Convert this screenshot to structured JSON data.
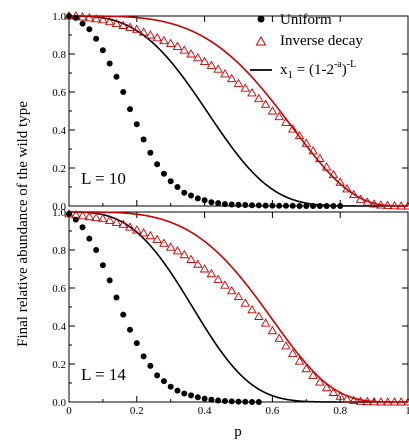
{
  "chart_data": {
    "type": "scatter",
    "xlabel": "p",
    "ylabel": "Final relative abundance of the wild type",
    "xlim": [
      0,
      1
    ],
    "ylim": [
      0,
      1
    ],
    "x_ticks": [
      "0",
      "0.2",
      "0.4",
      "0.6",
      "0.8",
      "1"
    ],
    "y_ticks": [
      "0.0",
      "0.2",
      "0.4",
      "0.6",
      "0.8",
      "1.0"
    ],
    "grid": false,
    "legend": {
      "placement": "top-right",
      "entries": [
        {
          "label": "Uniform",
          "marker": "filled-circle",
          "color": "#000000"
        },
        {
          "label": "Inverse decay",
          "marker": "open-triangle",
          "color": "#cc0000"
        },
        {
          "label": "x1 = (1-2^-a)^-L",
          "marker": "line",
          "color": "#000000"
        }
      ]
    },
    "panels": [
      {
        "label": "L = 10",
        "L": 10,
        "uniform_points": {
          "x": [
            0,
            0.02,
            0.04,
            0.06,
            0.08,
            0.1,
            0.12,
            0.14,
            0.16,
            0.18,
            0.2,
            0.22,
            0.24,
            0.26,
            0.28,
            0.3,
            0.32,
            0.34,
            0.36,
            0.38,
            0.4,
            0.42,
            0.44,
            0.46,
            0.48,
            0.5,
            0.52,
            0.54,
            0.56,
            0.58,
            0.6,
            0.62,
            0.64,
            0.66,
            0.68,
            0.7,
            0.72,
            0.74,
            0.76,
            0.78,
            0.8
          ],
          "y": [
            1.0,
            0.99,
            0.96,
            0.93,
            0.88,
            0.82,
            0.75,
            0.68,
            0.6,
            0.51,
            0.43,
            0.35,
            0.28,
            0.22,
            0.17,
            0.13,
            0.1,
            0.07,
            0.055,
            0.04,
            0.03,
            0.02,
            0.015,
            0.01,
            0.008,
            0.006,
            0.005,
            0.004,
            0.003,
            0.002,
            0.002,
            0.001,
            0.001,
            0.001,
            0.0,
            0.0,
            0.0,
            0.0,
            0.0,
            0.0,
            0.0
          ]
        },
        "inverse_points": {
          "x": [
            0,
            0.02,
            0.04,
            0.06,
            0.08,
            0.1,
            0.12,
            0.14,
            0.16,
            0.18,
            0.2,
            0.22,
            0.24,
            0.26,
            0.28,
            0.3,
            0.32,
            0.34,
            0.36,
            0.38,
            0.4,
            0.42,
            0.44,
            0.46,
            0.48,
            0.5,
            0.52,
            0.54,
            0.56,
            0.58,
            0.6,
            0.62,
            0.64,
            0.66,
            0.68,
            0.7,
            0.72,
            0.74,
            0.76,
            0.78,
            0.8,
            0.82,
            0.84,
            0.86,
            0.88,
            0.9,
            0.92,
            0.94,
            0.96,
            0.98,
            1.0
          ],
          "y": [
            1.0,
            1.0,
            0.995,
            0.99,
            0.985,
            0.98,
            0.97,
            0.96,
            0.95,
            0.94,
            0.93,
            0.915,
            0.9,
            0.885,
            0.87,
            0.855,
            0.84,
            0.82,
            0.8,
            0.78,
            0.76,
            0.74,
            0.72,
            0.695,
            0.67,
            0.645,
            0.62,
            0.595,
            0.565,
            0.535,
            0.5,
            0.47,
            0.44,
            0.405,
            0.37,
            0.33,
            0.29,
            0.25,
            0.205,
            0.165,
            0.125,
            0.09,
            0.06,
            0.035,
            0.02,
            0.01,
            0.005,
            0.003,
            0.001,
            0.0,
            0.0
          ]
        }
      },
      {
        "label": "L = 14",
        "L": 14,
        "uniform_points": {
          "x": [
            0,
            0.02,
            0.04,
            0.06,
            0.08,
            0.1,
            0.12,
            0.14,
            0.16,
            0.18,
            0.2,
            0.22,
            0.24,
            0.26,
            0.28,
            0.3,
            0.32,
            0.34,
            0.36,
            0.38,
            0.4,
            0.42,
            0.44,
            0.46,
            0.48,
            0.5,
            0.52,
            0.54,
            0.56
          ],
          "y": [
            0.99,
            0.96,
            0.92,
            0.86,
            0.8,
            0.72,
            0.64,
            0.55,
            0.46,
            0.38,
            0.31,
            0.24,
            0.19,
            0.14,
            0.11,
            0.08,
            0.06,
            0.045,
            0.035,
            0.025,
            0.018,
            0.012,
            0.008,
            0.005,
            0.003,
            0.002,
            0.001,
            0.0,
            0.0
          ]
        },
        "inverse_points": {
          "x": [
            0,
            0.02,
            0.04,
            0.06,
            0.08,
            0.1,
            0.12,
            0.14,
            0.16,
            0.18,
            0.2,
            0.22,
            0.24,
            0.26,
            0.28,
            0.3,
            0.32,
            0.34,
            0.36,
            0.38,
            0.4,
            0.42,
            0.44,
            0.46,
            0.48,
            0.5,
            0.52,
            0.54,
            0.56,
            0.58,
            0.6,
            0.62,
            0.64,
            0.66,
            0.68,
            0.7,
            0.72,
            0.74,
            0.76,
            0.78,
            0.8,
            0.82,
            0.84,
            0.86,
            0.88,
            0.9,
            0.92,
            0.94,
            0.96,
            0.98,
            1.0
          ],
          "y": [
            0.99,
            0.985,
            0.98,
            0.975,
            0.97,
            0.965,
            0.955,
            0.945,
            0.935,
            0.92,
            0.905,
            0.89,
            0.875,
            0.855,
            0.835,
            0.815,
            0.795,
            0.775,
            0.75,
            0.725,
            0.7,
            0.675,
            0.645,
            0.615,
            0.585,
            0.555,
            0.52,
            0.485,
            0.45,
            0.415,
            0.375,
            0.335,
            0.295,
            0.255,
            0.215,
            0.175,
            0.14,
            0.105,
            0.075,
            0.05,
            0.03,
            0.015,
            0.008,
            0.004,
            0.002,
            0.001,
            0.0,
            0.0,
            0.0,
            0.0,
            0.0
          ]
        }
      }
    ],
    "theory_curves": {
      "formula_text": "x1 = (1-2^-a)^-L",
      "uniform_color": "#000000",
      "inverse_color": "#cc0000"
    }
  }
}
